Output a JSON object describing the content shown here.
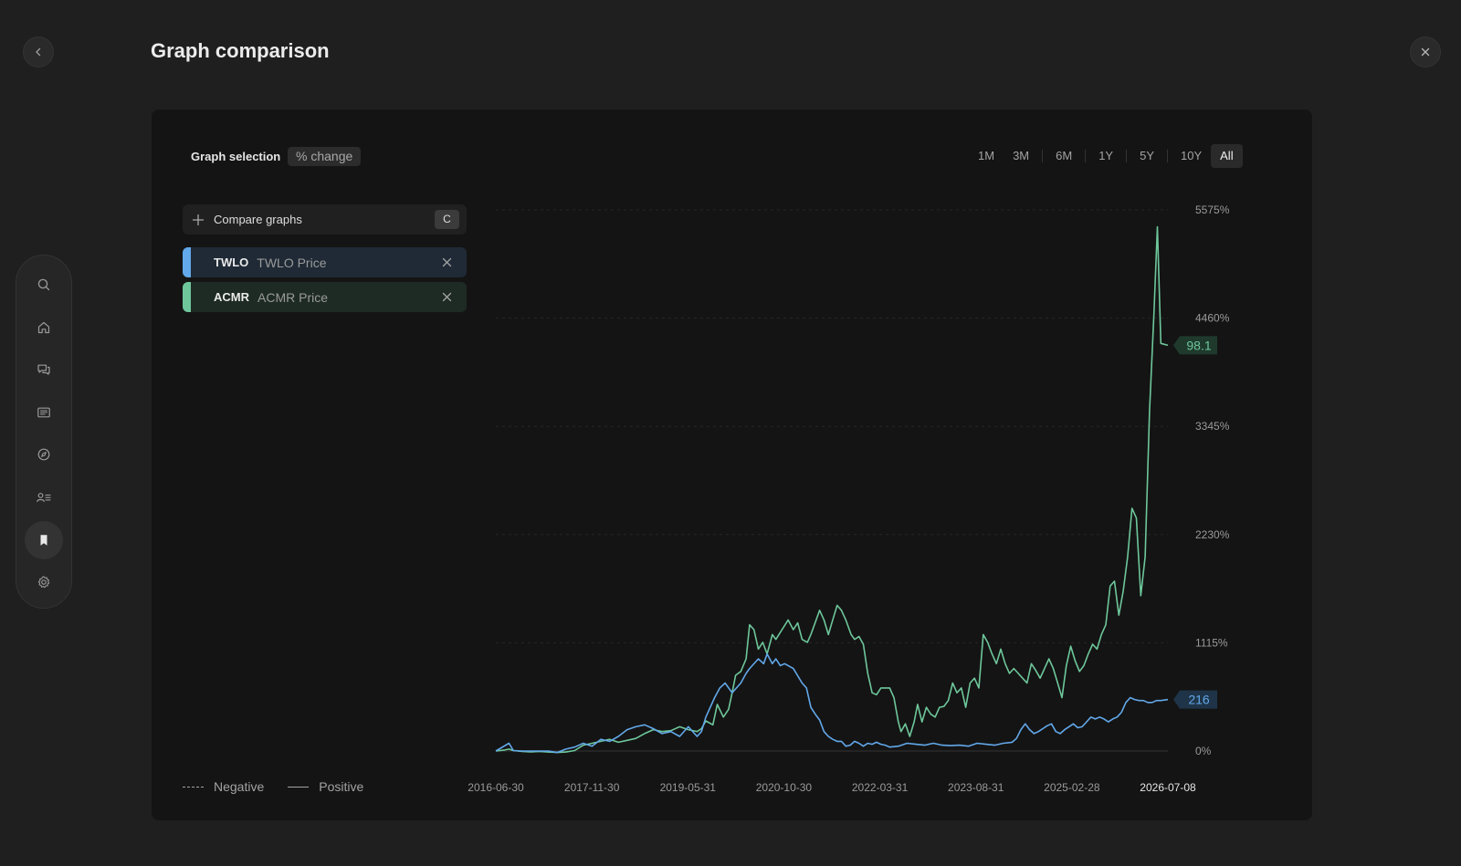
{
  "page": {
    "title": "Graph comparison"
  },
  "sidebar": {
    "items": [
      {
        "icon": "search-icon"
      },
      {
        "icon": "home-icon"
      },
      {
        "icon": "chat-icon"
      },
      {
        "icon": "news-icon"
      },
      {
        "icon": "compass-icon"
      },
      {
        "icon": "people-list-icon"
      },
      {
        "icon": "bookmark-icon",
        "active": true
      },
      {
        "icon": "gear-icon"
      }
    ]
  },
  "graph_selection": {
    "label": "Graph selection",
    "mode": "% change"
  },
  "ranges": [
    "1M",
    "3M",
    "6M",
    "1Y",
    "5Y",
    "10Y",
    "All"
  ],
  "active_range": "All",
  "compare": {
    "label": "Compare graphs",
    "shortcut": "C"
  },
  "series_list": [
    {
      "symbol": "TWLO",
      "name": "TWLO Price",
      "color": "#62a8ea"
    },
    {
      "symbol": "ACMR",
      "name": "ACMR Price",
      "color": "#6ec79b"
    }
  ],
  "legend": {
    "negative": "Negative",
    "positive": "Positive"
  },
  "colors": {
    "twlo": "#62a8ea",
    "acmr": "#6ec79b",
    "background": "#1f1f1f",
    "card": "#141414"
  },
  "chart_data": {
    "type": "line",
    "x_ticks": [
      "2016-06-30",
      "2017-11-30",
      "2019-05-31",
      "2020-10-30",
      "2022-03-31",
      "2023-08-31",
      "2025-02-28",
      "2026-07-08"
    ],
    "y_ticks": [
      "5575%",
      "4460%",
      "3345%",
      "2230%",
      "1115%",
      "0%"
    ],
    "ylim": [
      0,
      5575
    ],
    "grid": true,
    "series": [
      {
        "name": "ACMR Price",
        "last_value": "98.1",
        "values": [
          [
            0.0,
            0
          ],
          [
            1.0,
            10
          ],
          [
            1.5,
            20
          ],
          [
            2.0,
            5
          ],
          [
            3.0,
            -5
          ],
          [
            4.0,
            -8
          ],
          [
            5.0,
            -5
          ],
          [
            6.0,
            -10
          ],
          [
            7.0,
            -15
          ],
          [
            8.0,
            -10
          ],
          [
            9.0,
            5
          ],
          [
            10.0,
            60
          ],
          [
            11.0,
            80
          ],
          [
            12.0,
            100
          ],
          [
            13.0,
            120
          ],
          [
            14.0,
            90
          ],
          [
            15.0,
            110
          ],
          [
            16.0,
            130
          ],
          [
            17.0,
            180
          ],
          [
            18.0,
            220
          ],
          [
            19.0,
            200
          ],
          [
            20.0,
            210
          ],
          [
            21.0,
            250
          ],
          [
            22.0,
            220
          ],
          [
            23.0,
            200
          ],
          [
            23.5,
            230
          ],
          [
            24.0,
            310
          ],
          [
            24.8,
            270
          ],
          [
            25.3,
            480
          ],
          [
            26.0,
            350
          ],
          [
            26.6,
            430
          ],
          [
            27.0,
            600
          ],
          [
            27.4,
            780
          ],
          [
            28.0,
            820
          ],
          [
            28.6,
            950
          ],
          [
            29.0,
            1300
          ],
          [
            29.5,
            1250
          ],
          [
            30.0,
            1050
          ],
          [
            30.5,
            1120
          ],
          [
            31.0,
            1000
          ],
          [
            31.6,
            1200
          ],
          [
            32.0,
            1150
          ],
          [
            32.7,
            1250
          ],
          [
            33.4,
            1350
          ],
          [
            34.0,
            1250
          ],
          [
            34.5,
            1320
          ],
          [
            35.0,
            1150
          ],
          [
            35.6,
            1120
          ],
          [
            36.0,
            1200
          ],
          [
            36.6,
            1350
          ],
          [
            37.0,
            1450
          ],
          [
            37.5,
            1350
          ],
          [
            38.0,
            1200
          ],
          [
            38.6,
            1380
          ],
          [
            39.0,
            1500
          ],
          [
            39.5,
            1450
          ],
          [
            40.0,
            1350
          ],
          [
            40.6,
            1200
          ],
          [
            41.0,
            1150
          ],
          [
            41.5,
            1180
          ],
          [
            42.0,
            1100
          ],
          [
            42.5,
            800
          ],
          [
            43.0,
            600
          ],
          [
            43.5,
            580
          ],
          [
            44.0,
            650
          ],
          [
            45.0,
            650
          ],
          [
            45.5,
            550
          ],
          [
            46.0,
            300
          ],
          [
            46.3,
            200
          ],
          [
            46.8,
            280
          ],
          [
            47.3,
            150
          ],
          [
            47.8,
            300
          ],
          [
            48.2,
            480
          ],
          [
            48.7,
            300
          ],
          [
            49.2,
            450
          ],
          [
            49.7,
            380
          ],
          [
            50.2,
            350
          ],
          [
            50.7,
            450
          ],
          [
            51.2,
            460
          ],
          [
            51.7,
            520
          ],
          [
            52.2,
            700
          ],
          [
            52.7,
            600
          ],
          [
            53.2,
            650
          ],
          [
            53.7,
            450
          ],
          [
            54.2,
            700
          ],
          [
            54.7,
            750
          ],
          [
            55.2,
            650
          ],
          [
            55.7,
            1200
          ],
          [
            56.2,
            1120
          ],
          [
            56.7,
            1000
          ],
          [
            57.2,
            900
          ],
          [
            57.7,
            1050
          ],
          [
            58.2,
            900
          ],
          [
            58.7,
            800
          ],
          [
            59.2,
            850
          ],
          [
            59.7,
            800
          ],
          [
            60.2,
            750
          ],
          [
            60.7,
            700
          ],
          [
            61.2,
            900
          ],
          [
            61.7,
            830
          ],
          [
            62.2,
            750
          ],
          [
            62.7,
            850
          ],
          [
            63.2,
            950
          ],
          [
            63.7,
            850
          ],
          [
            64.2,
            700
          ],
          [
            64.7,
            550
          ],
          [
            65.2,
            880
          ],
          [
            65.7,
            1080
          ],
          [
            66.2,
            930
          ],
          [
            66.7,
            820
          ],
          [
            67.2,
            880
          ],
          [
            67.7,
            1000
          ],
          [
            68.2,
            1100
          ],
          [
            68.7,
            1050
          ],
          [
            69.2,
            1200
          ],
          [
            69.7,
            1300
          ],
          [
            70.2,
            1700
          ],
          [
            70.7,
            1750
          ],
          [
            71.2,
            1400
          ],
          [
            71.7,
            1650
          ],
          [
            72.2,
            2000
          ],
          [
            72.7,
            2500
          ],
          [
            73.2,
            2400
          ],
          [
            73.7,
            1600
          ],
          [
            74.2,
            2000
          ],
          [
            74.7,
            3500
          ],
          [
            75.2,
            4500
          ],
          [
            75.6,
            5400
          ],
          [
            76.0,
            4200
          ],
          [
            76.8,
            4180
          ]
        ]
      },
      {
        "name": "TWLO Price",
        "last_value": "216",
        "values": [
          [
            0.0,
            0
          ],
          [
            1.5,
            80
          ],
          [
            2.0,
            5
          ],
          [
            3.0,
            0
          ],
          [
            4.0,
            0
          ],
          [
            5.0,
            0
          ],
          [
            6.0,
            0
          ],
          [
            7.0,
            -15
          ],
          [
            8.0,
            20
          ],
          [
            9.0,
            40
          ],
          [
            10.0,
            80
          ],
          [
            11.0,
            50
          ],
          [
            12.0,
            120
          ],
          [
            13.0,
            100
          ],
          [
            14.0,
            150
          ],
          [
            15.0,
            220
          ],
          [
            16.0,
            250
          ],
          [
            17.0,
            270
          ],
          [
            18.0,
            230
          ],
          [
            19.0,
            180
          ],
          [
            20.0,
            200
          ],
          [
            21.0,
            150
          ],
          [
            22.0,
            250
          ],
          [
            23.0,
            150
          ],
          [
            23.5,
            200
          ],
          [
            24.0,
            350
          ],
          [
            25.0,
            550
          ],
          [
            25.6,
            650
          ],
          [
            26.2,
            700
          ],
          [
            27.0,
            600
          ],
          [
            28.0,
            700
          ],
          [
            28.6,
            800
          ],
          [
            29.0,
            850
          ],
          [
            30.0,
            950
          ],
          [
            30.6,
            900
          ],
          [
            31.0,
            1000
          ],
          [
            31.6,
            900
          ],
          [
            32.0,
            950
          ],
          [
            32.5,
            880
          ],
          [
            33.0,
            900
          ],
          [
            34.0,
            850
          ],
          [
            35.0,
            700
          ],
          [
            35.5,
            650
          ],
          [
            36.0,
            450
          ],
          [
            36.5,
            380
          ],
          [
            37.0,
            320
          ],
          [
            37.5,
            200
          ],
          [
            38.0,
            150
          ],
          [
            38.5,
            120
          ],
          [
            39.0,
            100
          ],
          [
            39.5,
            100
          ],
          [
            40.0,
            50
          ],
          [
            40.5,
            60
          ],
          [
            41.0,
            100
          ],
          [
            41.5,
            80
          ],
          [
            42.0,
            50
          ],
          [
            42.5,
            80
          ],
          [
            43.0,
            70
          ],
          [
            43.5,
            90
          ],
          [
            44.0,
            70
          ],
          [
            44.5,
            60
          ],
          [
            45.0,
            40
          ],
          [
            46.0,
            50
          ],
          [
            47.0,
            80
          ],
          [
            48.0,
            70
          ],
          [
            49.0,
            60
          ],
          [
            50.0,
            80
          ],
          [
            51.0,
            60
          ],
          [
            52.0,
            55
          ],
          [
            53.0,
            60
          ],
          [
            54.0,
            50
          ],
          [
            55.0,
            80
          ],
          [
            56.0,
            70
          ],
          [
            57.0,
            60
          ],
          [
            58.0,
            80
          ],
          [
            59.0,
            90
          ],
          [
            59.5,
            130
          ],
          [
            60.0,
            220
          ],
          [
            60.5,
            280
          ],
          [
            61.0,
            220
          ],
          [
            61.5,
            180
          ],
          [
            62.0,
            200
          ],
          [
            62.5,
            230
          ],
          [
            63.0,
            260
          ],
          [
            63.5,
            280
          ],
          [
            64.0,
            200
          ],
          [
            64.5,
            180
          ],
          [
            65.0,
            220
          ],
          [
            65.5,
            250
          ],
          [
            66.0,
            280
          ],
          [
            66.5,
            240
          ],
          [
            67.0,
            250
          ],
          [
            67.5,
            300
          ],
          [
            68.0,
            350
          ],
          [
            68.5,
            330
          ],
          [
            69.0,
            350
          ],
          [
            69.5,
            330
          ],
          [
            70.0,
            300
          ],
          [
            70.5,
            330
          ],
          [
            71.0,
            350
          ],
          [
            71.5,
            400
          ],
          [
            72.0,
            500
          ],
          [
            72.5,
            550
          ],
          [
            73.0,
            530
          ],
          [
            73.5,
            520
          ],
          [
            74.0,
            520
          ],
          [
            74.5,
            500
          ],
          [
            75.0,
            500
          ],
          [
            75.5,
            520
          ],
          [
            76.0,
            520
          ],
          [
            76.8,
            530
          ]
        ]
      }
    ]
  }
}
